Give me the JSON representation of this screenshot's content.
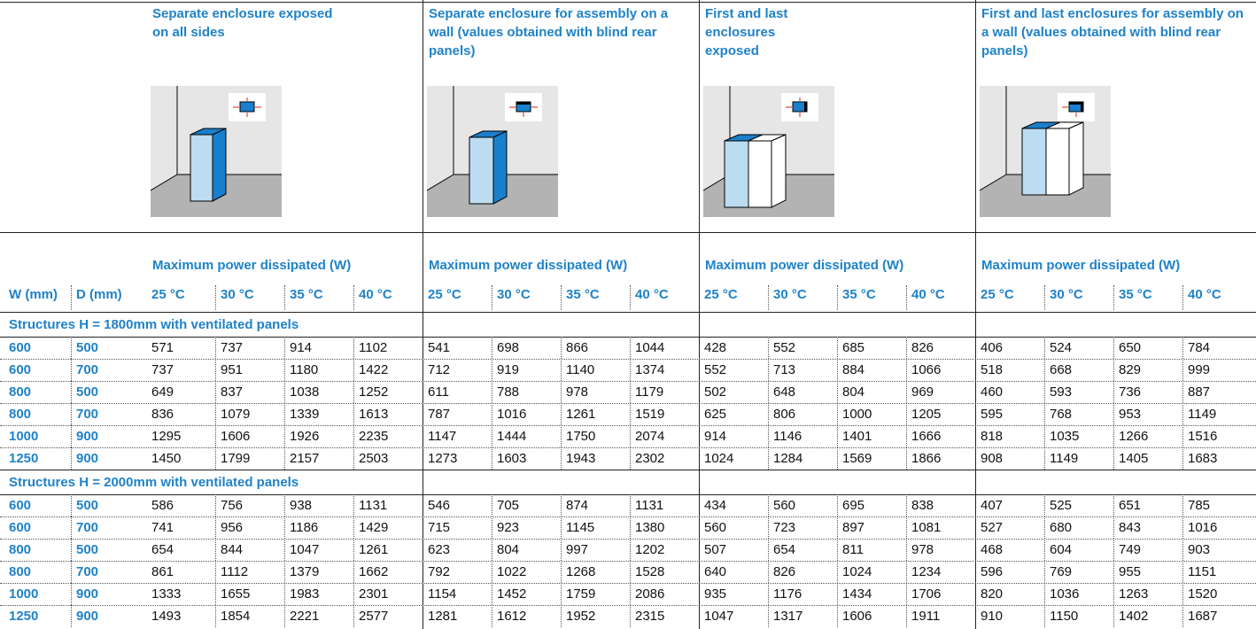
{
  "columns": {
    "w": "W (mm)",
    "d": "D (mm)"
  },
  "groups": [
    {
      "title": "Separate enclosure exposed on all sides",
      "subtitle": "Maximum power dissipated (W)",
      "temps": [
        "25 °C",
        "30 °C",
        "35 °C",
        "40 °C"
      ]
    },
    {
      "title": "Separate enclosure for assembly on a wall (values obtained with blind rear panels)",
      "subtitle": "Maximum power dissipated (W)",
      "temps": [
        "25 °C",
        "30 °C",
        "35 °C",
        "40 °C"
      ]
    },
    {
      "title": "First and last enclosures exposed",
      "subtitle": "Maximum power dissipated (W)",
      "temps": [
        "25 °C",
        "30 °C",
        "35 °C",
        "40 °C"
      ]
    },
    {
      "title": "First and last enclosures for assembly on a wall (values obtained with blind rear panels)",
      "subtitle": "Maximum power dissipated (W)",
      "temps": [
        "25 °C",
        "30 °C",
        "35 °C",
        "40 °C"
      ]
    }
  ],
  "sections": [
    {
      "title": "Structures H = 1800mm with ventilated panels",
      "rows": [
        {
          "w": 600,
          "d": 500,
          "values": [
            571,
            737,
            914,
            1102,
            541,
            698,
            866,
            1044,
            428,
            552,
            685,
            826,
            406,
            524,
            650,
            784
          ]
        },
        {
          "w": 600,
          "d": 700,
          "values": [
            737,
            951,
            1180,
            1422,
            712,
            919,
            1140,
            1374,
            552,
            713,
            884,
            1066,
            518,
            668,
            829,
            999
          ]
        },
        {
          "w": 800,
          "d": 500,
          "values": [
            649,
            837,
            1038,
            1252,
            611,
            788,
            978,
            1179,
            502,
            648,
            804,
            969,
            460,
            593,
            736,
            887
          ]
        },
        {
          "w": 800,
          "d": 700,
          "values": [
            836,
            1079,
            1339,
            1613,
            787,
            1016,
            1261,
            1519,
            625,
            806,
            1000,
            1205,
            595,
            768,
            953,
            1149
          ]
        },
        {
          "w": 1000,
          "d": 900,
          "values": [
            1295,
            1606,
            1926,
            2235,
            1147,
            1444,
            1750,
            2074,
            914,
            1146,
            1401,
            1666,
            818,
            1035,
            1266,
            1516
          ]
        },
        {
          "w": 1250,
          "d": 900,
          "values": [
            1450,
            1799,
            2157,
            2503,
            1273,
            1603,
            1943,
            2302,
            1024,
            1284,
            1569,
            1866,
            908,
            1149,
            1405,
            1683
          ]
        }
      ]
    },
    {
      "title": "Structures H = 2000mm with ventilated panels",
      "rows": [
        {
          "w": 600,
          "d": 500,
          "values": [
            586,
            756,
            938,
            1131,
            546,
            705,
            874,
            1131,
            434,
            560,
            695,
            838,
            407,
            525,
            651,
            785
          ]
        },
        {
          "w": 600,
          "d": 700,
          "values": [
            741,
            956,
            1186,
            1429,
            715,
            923,
            1145,
            1380,
            560,
            723,
            897,
            1081,
            527,
            680,
            843,
            1016
          ]
        },
        {
          "w": 800,
          "d": 500,
          "values": [
            654,
            844,
            1047,
            1261,
            623,
            804,
            997,
            1202,
            507,
            654,
            811,
            978,
            468,
            604,
            749,
            903
          ]
        },
        {
          "w": 800,
          "d": 700,
          "values": [
            861,
            1112,
            1379,
            1662,
            792,
            1022,
            1268,
            1528,
            640,
            826,
            1024,
            1234,
            596,
            769,
            955,
            1151
          ]
        },
        {
          "w": 1000,
          "d": 900,
          "values": [
            1333,
            1655,
            1983,
            2301,
            1154,
            1452,
            1759,
            2086,
            935,
            1176,
            1434,
            1706,
            820,
            1036,
            1263,
            1520
          ]
        },
        {
          "w": 1250,
          "d": 900,
          "values": [
            1493,
            1854,
            2221,
            2577,
            1281,
            1612,
            1952,
            2315,
            1047,
            1317,
            1606,
            1911,
            910,
            1150,
            1402,
            1687
          ]
        }
      ]
    }
  ]
}
